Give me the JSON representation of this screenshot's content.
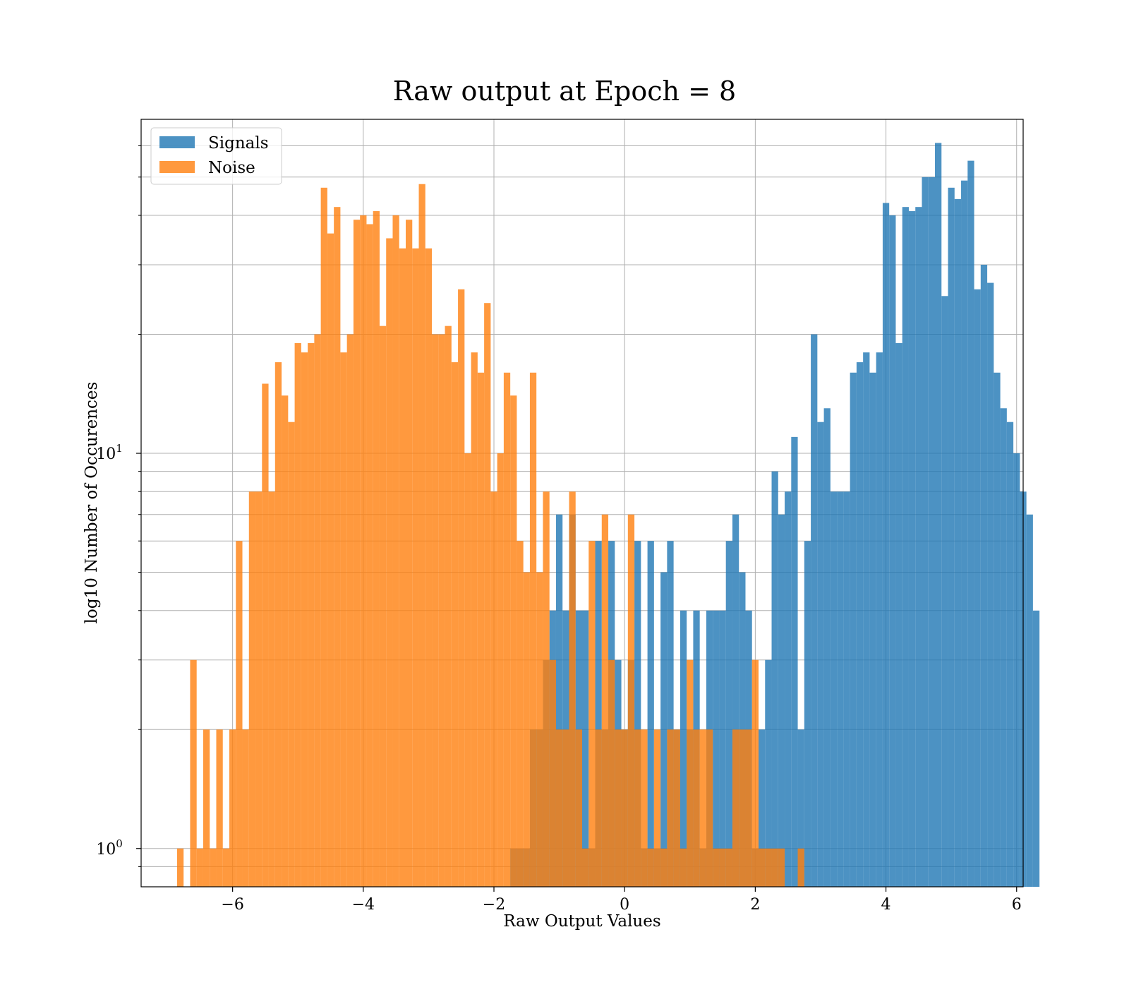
{
  "chart_data": {
    "type": "bar",
    "chart_kind": "histogram",
    "title": "Raw output at Epoch = 8",
    "xlabel": "Raw Output Values",
    "ylabel": "log10 Number of Occurences",
    "xlim": [
      -7.4,
      6.1
    ],
    "ylim": [
      0.8,
      70
    ],
    "yscale": "log",
    "grid": true,
    "grid_minor_y": true,
    "legend_position": "top-left",
    "x_ticks": [
      {
        "value": -6,
        "label": "−6"
      },
      {
        "value": -4,
        "label": "−4"
      },
      {
        "value": -2,
        "label": "−2"
      },
      {
        "value": 0,
        "label": "0"
      },
      {
        "value": 2,
        "label": "2"
      },
      {
        "value": 4,
        "label": "4"
      },
      {
        "value": 6,
        "label": "6"
      }
    ],
    "y_ticks": [
      {
        "value": 1,
        "base": "10",
        "exp": "0"
      },
      {
        "value": 10,
        "base": "10",
        "exp": "1"
      }
    ],
    "y_minor_ticks": [
      0.9,
      2,
      3,
      4,
      5,
      6,
      7,
      8,
      9,
      20,
      30,
      40,
      50,
      60
    ],
    "series": [
      {
        "name": "Signals",
        "color": "#1f77b4",
        "opacity": 0.8,
        "bin_start": -1.75,
        "bin_width": 0.1,
        "values": [
          1,
          1,
          1,
          2,
          2,
          3,
          4,
          7,
          4,
          7,
          4,
          4,
          1,
          6,
          2,
          6,
          3,
          2,
          3,
          6,
          1,
          6,
          1,
          5,
          6,
          2,
          4,
          2,
          4,
          1,
          4,
          4,
          4,
          6,
          7,
          5,
          4,
          1,
          2,
          3,
          9,
          7,
          8,
          11,
          2,
          6,
          20,
          12,
          13,
          8,
          8,
          8,
          16,
          17,
          18,
          16,
          18,
          43,
          40,
          19,
          42,
          41,
          42,
          50,
          50,
          61,
          25,
          47,
          44,
          49,
          55,
          26,
          30,
          27,
          16,
          13,
          12,
          10,
          8,
          7,
          4
        ]
      },
      {
        "name": "Noise",
        "color": "#ff7f0e",
        "opacity": 0.8,
        "bin_start": -6.85,
        "bin_width": 0.1,
        "values": [
          1,
          0,
          3,
          1,
          2,
          1,
          2,
          1,
          2,
          6,
          2,
          8,
          8,
          15,
          8,
          17,
          14,
          12,
          19,
          18,
          19,
          20,
          47,
          36,
          42,
          18,
          20,
          39,
          40,
          38,
          41,
          21,
          35,
          40,
          33,
          39,
          33,
          48,
          33,
          20,
          20,
          21,
          17,
          26,
          10,
          18,
          16,
          24,
          8,
          10,
          16,
          14,
          6,
          5,
          16,
          5,
          8,
          3,
          2,
          2,
          8,
          2,
          1,
          6,
          2,
          7,
          3,
          2,
          2,
          7,
          2,
          2,
          1,
          2,
          1,
          2,
          2,
          1,
          3,
          2,
          2,
          2,
          1,
          1,
          1,
          2,
          2,
          2,
          3,
          1,
          1,
          1,
          1,
          0,
          0,
          1
        ]
      }
    ]
  }
}
